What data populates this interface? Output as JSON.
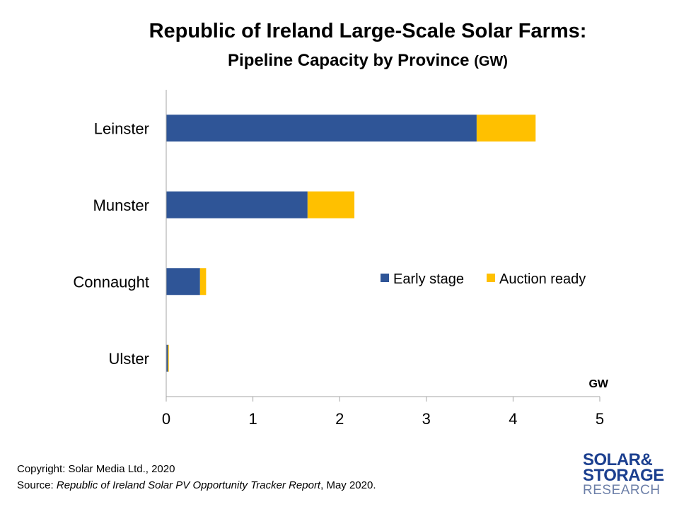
{
  "title": "Republic of Ireland Large-Scale Solar Farms:",
  "subtitle": "Pipeline Capacity by Province",
  "subtitle_unit": "(GW)",
  "chart_data": {
    "type": "bar",
    "orientation": "horizontal",
    "stacked": true,
    "categories": [
      "Leinster",
      "Munster",
      "Connaught",
      "Ulster"
    ],
    "series": [
      {
        "name": "Early stage",
        "values": [
          3.58,
          1.63,
          0.39,
          0.02
        ],
        "color": "#2F5597"
      },
      {
        "name": "Auction ready",
        "values": [
          0.68,
          0.54,
          0.07,
          0.01
        ],
        "color": "#FFC000"
      }
    ],
    "xlabel": "GW",
    "xlim": [
      0,
      5
    ],
    "xticks": [
      0,
      1,
      2,
      3,
      4,
      5
    ],
    "grid": false,
    "legend_position": "inside-right"
  },
  "footer": {
    "copyright": "Copyright: Solar Media Ltd., 2020",
    "source_prefix": "Source: ",
    "source_title": "Republic of Ireland Solar PV Opportunity Tracker Report",
    "source_suffix": ", May 2020."
  },
  "logo": {
    "line1": "SOLAR&",
    "line2": "STORAGE",
    "line3": "RESEARCH",
    "colors": {
      "navy": "#1B3F8F",
      "orange": "#F39200",
      "gray_blue": "#6C7FA8"
    }
  }
}
